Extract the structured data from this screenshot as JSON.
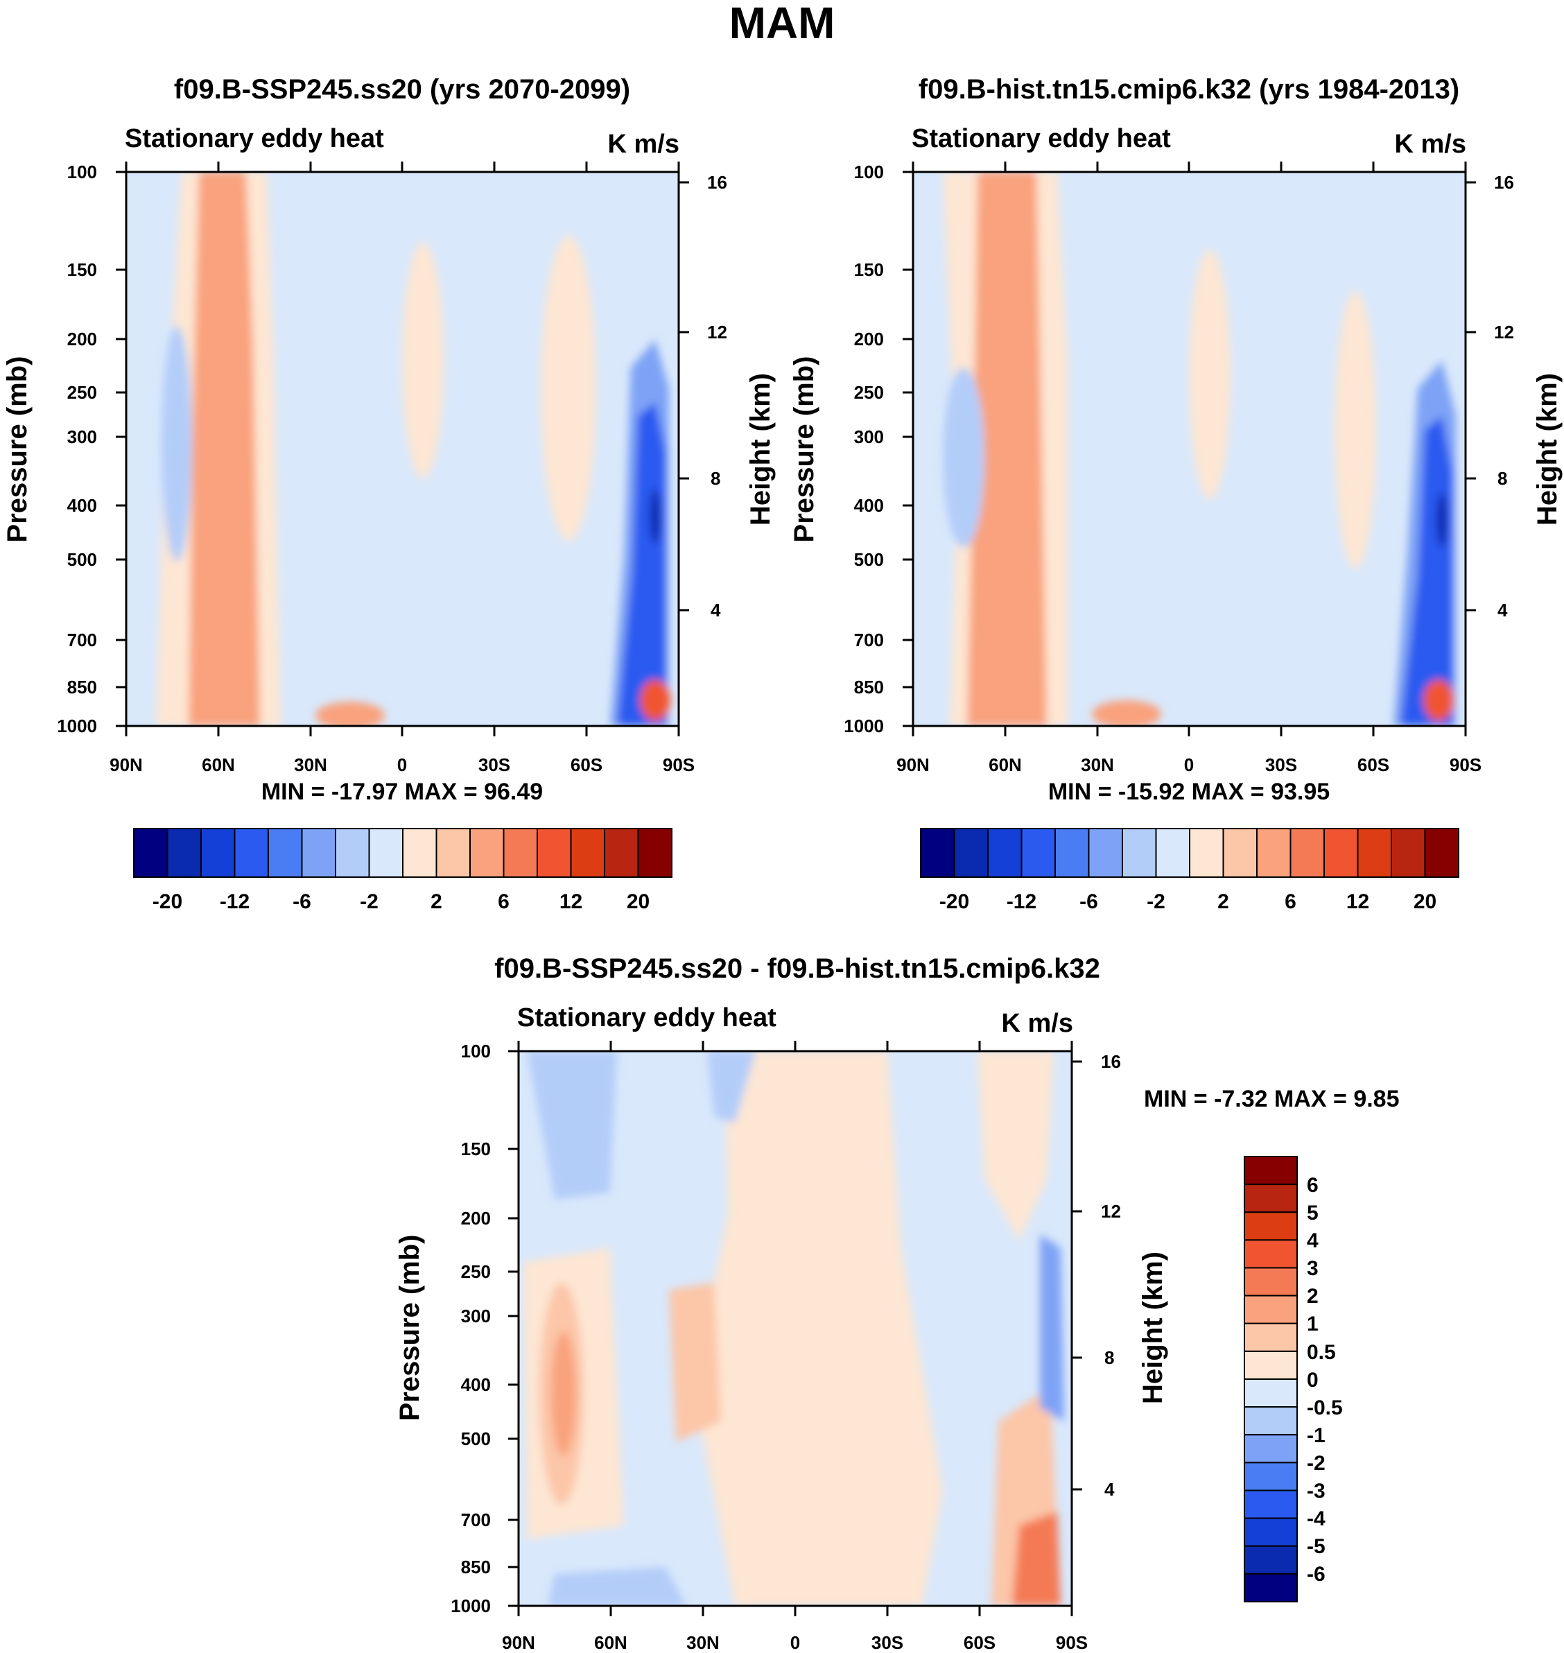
{
  "figure": {
    "title": "MAM",
    "colors": {
      "main_levels": [
        "#000080",
        "#0a2ab0",
        "#1440d8",
        "#2a5af0",
        "#4a7cf4",
        "#7ea3f6",
        "#b3cdf9",
        "#d9e8fb",
        "#fde6d3",
        "#fcc6a8",
        "#f9a27d",
        "#f47a55",
        "#f05430",
        "#dc3d13",
        "#b82510",
        "#870000"
      ],
      "diff_levels": [
        "#000080",
        "#0a2ab0",
        "#1440d8",
        "#2a5af0",
        "#4a7cf4",
        "#7ea3f6",
        "#b3cdf9",
        "#d9e8fb",
        "#fde6d3",
        "#fcc6a8",
        "#f9a27d",
        "#f47a55",
        "#f05430",
        "#dc3d13",
        "#b82510",
        "#870000"
      ]
    }
  },
  "chart_data": [
    {
      "type": "heatmap",
      "title": "f09.B-SSP245.ss20 (yrs 2070-2099)",
      "left_label": "Stationary eddy heat",
      "right_label": "K m/s",
      "xlabel": "",
      "ylabel": "Pressure (mb)",
      "y2label": "Height (km)",
      "x_ticks": [
        "90N",
        "60N",
        "30N",
        "0",
        "30S",
        "60S",
        "90S"
      ],
      "xlim": [
        90,
        -90
      ],
      "y_ticks": [
        "100",
        "150",
        "200",
        "250",
        "300",
        "400",
        "500",
        "700",
        "850",
        "1000"
      ],
      "ylim_mb": [
        1000,
        100
      ],
      "y2_ticks": [
        "16",
        "12",
        "8",
        "4"
      ],
      "stats_text": "MIN = -17.97  MAX =  96.49",
      "min": -17.97,
      "max": 96.49,
      "colorbar_labels": [
        "-20",
        "-12",
        "-6",
        "-2",
        "2",
        "6",
        "12",
        "20"
      ]
    },
    {
      "type": "heatmap",
      "title": "f09.B-hist.tn15.cmip6.k32 (yrs 1984-2013)",
      "left_label": "Stationary eddy heat",
      "right_label": "K m/s",
      "xlabel": "",
      "ylabel": "Pressure (mb)",
      "y2label": "Height (km)",
      "x_ticks": [
        "90N",
        "60N",
        "30N",
        "0",
        "30S",
        "60S",
        "90S"
      ],
      "xlim": [
        90,
        -90
      ],
      "y_ticks": [
        "100",
        "150",
        "200",
        "250",
        "300",
        "400",
        "500",
        "700",
        "850",
        "1000"
      ],
      "ylim_mb": [
        1000,
        100
      ],
      "y2_ticks": [
        "16",
        "12",
        "8",
        "4"
      ],
      "stats_text": "MIN = -15.92  MAX =  93.95",
      "min": -15.92,
      "max": 93.95,
      "colorbar_labels": [
        "-20",
        "-12",
        "-6",
        "-2",
        "2",
        "6",
        "12",
        "20"
      ]
    },
    {
      "type": "heatmap",
      "title": "f09.B-SSP245.ss20 - f09.B-hist.tn15.cmip6.k32",
      "left_label": "Stationary eddy heat",
      "right_label": "K m/s",
      "xlabel": "",
      "ylabel": "Pressure (mb)",
      "y2label": "Height (km)",
      "x_ticks": [
        "90N",
        "60N",
        "30N",
        "0",
        "30S",
        "60S",
        "90S"
      ],
      "xlim": [
        90,
        -90
      ],
      "y_ticks": [
        "100",
        "150",
        "200",
        "250",
        "300",
        "400",
        "500",
        "700",
        "850",
        "1000"
      ],
      "ylim_mb": [
        1000,
        100
      ],
      "y2_ticks": [
        "16",
        "12",
        "8",
        "4"
      ],
      "stats_text": "MIN =  -7.32  MAX =   9.85",
      "min": -7.32,
      "max": 9.85,
      "colorbar_labels": [
        "6",
        "5",
        "4",
        "3",
        "2",
        "1",
        "0.5",
        "0",
        "-0.5",
        "-1",
        "-2",
        "-3",
        "-4",
        "-5",
        "-6"
      ]
    }
  ]
}
